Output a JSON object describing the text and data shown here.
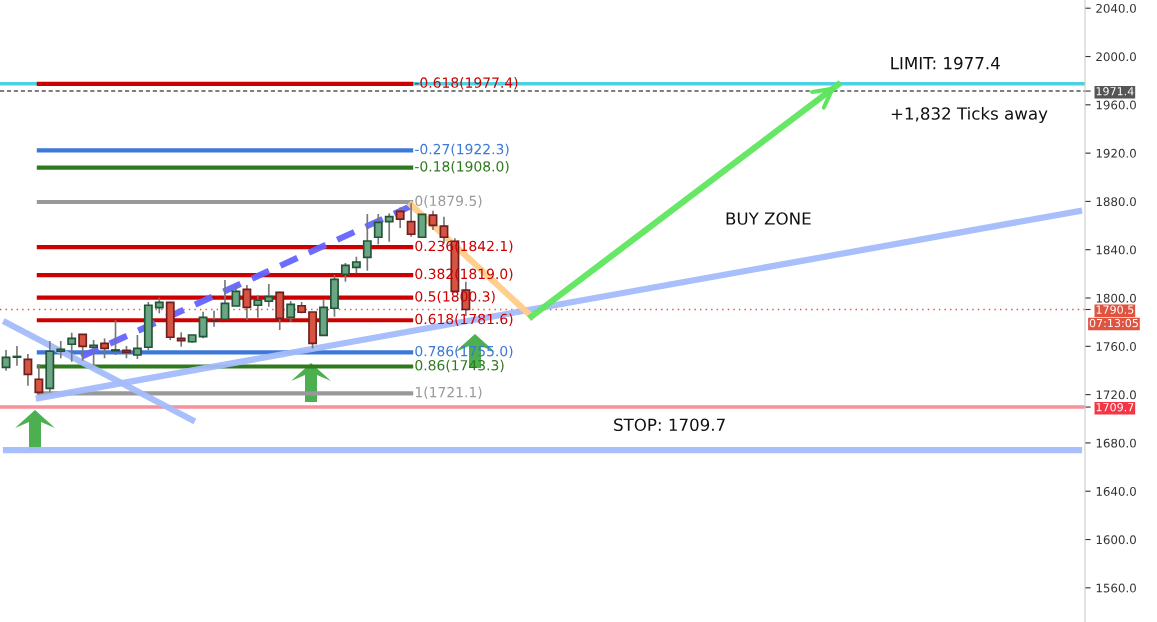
{
  "chart_data": {
    "type": "candlestick",
    "categories": [
      null,
      null,
      null,
      null,
      null,
      null,
      null,
      null,
      null,
      null,
      null,
      null,
      null,
      null,
      null,
      null,
      null,
      null,
      null,
      null,
      null,
      null,
      null,
      null,
      null,
      null,
      null,
      null,
      null,
      null,
      null,
      null,
      null,
      null,
      null,
      null,
      null,
      null,
      null,
      null,
      null,
      null,
      null,
      null,
      null,
      null,
      null,
      null,
      null,
      null,
      null,
      null,
      null,
      null,
      null,
      null,
      null,
      null,
      null,
      null,
      null,
      null,
      null,
      null,
      null,
      null,
      null,
      null,
      null,
      null,
      null,
      null,
      null,
      null,
      null,
      null,
      null,
      null,
      null,
      null,
      null,
      null,
      null,
      null,
      null,
      null,
      null,
      null,
      null,
      null,
      null,
      null,
      null,
      null,
      null,
      null,
      null,
      null,
      null
    ],
    "ohlc": [
      [
        1742.6,
        1756.9,
        1739.8,
        1750.9
      ],
      [
        1751.0,
        1760.3,
        1744.0,
        1751.0
      ],
      [
        1749.2,
        1753.6,
        1727.4,
        1736.8
      ],
      [
        1732.7,
        1745.1,
        1720.5,
        1721.9
      ],
      [
        1725.2,
        1764.4,
        1721.9,
        1755.9
      ],
      [
        1755.9,
        1764.4,
        1750.1,
        1757.5
      ],
      [
        1761.7,
        1771.3,
        1747.2,
        1766.6
      ],
      [
        1769.9,
        1769.9,
        1748.1,
        1760.0
      ],
      [
        1759.2,
        1765.2,
        1744.5,
        1760.9
      ],
      [
        1762.5,
        1766.6,
        1750.1,
        1758.3
      ],
      [
        1756.4,
        1781.8,
        1752.8,
        1756.4
      ],
      [
        1756.7,
        1760.3,
        1750.1,
        1755.0
      ],
      [
        1752.8,
        1769.4,
        1749.5,
        1758.3
      ],
      [
        1759.2,
        1796.7,
        1756.9,
        1794.0
      ],
      [
        1792.0,
        1800.3,
        1787.3,
        1796.4
      ],
      [
        1796.4,
        1796.4,
        1765.2,
        1767.5
      ],
      [
        1766.6,
        1771.6,
        1759.7,
        1764.7
      ],
      [
        1763.8,
        1769.4,
        1763.0,
        1769.4
      ],
      [
        1768.0,
        1788.7,
        1766.6,
        1784.0
      ],
      [
        1781.2,
        1789.5,
        1776.2,
        1780.8
      ],
      [
        1782.4,
        1814.9,
        1782.4,
        1795.6
      ],
      [
        1793.4,
        1810.8,
        1793.4,
        1805.5
      ],
      [
        1807.2,
        1810.8,
        1781.8,
        1792.3
      ],
      [
        1794.0,
        1802.2,
        1783.7,
        1798.3
      ],
      [
        1797.3,
        1811.6,
        1792.8,
        1801.1
      ],
      [
        1804.7,
        1805.2,
        1773.5,
        1783.2
      ],
      [
        1784.0,
        1797.5,
        1780.4,
        1794.8
      ],
      [
        1793.6,
        1796.7,
        1787.3,
        1788.2
      ],
      [
        1788.4,
        1788.4,
        1758.3,
        1762.5
      ],
      [
        1769.1,
        1798.9,
        1769.1,
        1792.3
      ],
      [
        1791.5,
        1819.0,
        1784.5,
        1815.5
      ],
      [
        1819.6,
        1829.0,
        1813.5,
        1827.1
      ],
      [
        1825.4,
        1834.2,
        1820.5,
        1829.8
      ],
      [
        1833.7,
        1869.6,
        1822.6,
        1847.2
      ],
      [
        1850.3,
        1869.6,
        1844.5,
        1862.7
      ],
      [
        1863.2,
        1870.1,
        1846.6,
        1867.4
      ],
      [
        1871.8,
        1875.0,
        1858.0,
        1865.4
      ],
      [
        1863.2,
        1878.4,
        1850.8,
        1852.8
      ],
      [
        1850.3,
        1869.3,
        1850.3,
        1869.3
      ],
      [
        1868.7,
        1872.3,
        1856.3,
        1860.2
      ],
      [
        1859.6,
        1867.3,
        1845.3,
        1850.3
      ],
      [
        1847.0,
        1849.4,
        1805.5,
        1805.5
      ],
      [
        1806.6,
        1813.5,
        1785.1,
        1790.5
      ],
      null,
      null,
      null,
      null,
      null,
      null,
      null,
      null,
      null,
      null,
      null,
      null,
      null,
      null,
      null,
      null,
      null,
      null,
      null,
      null,
      null,
      null,
      null,
      null,
      null,
      null,
      null,
      null,
      null,
      null,
      null,
      null,
      null,
      null,
      null,
      null,
      null,
      null,
      null,
      null,
      null,
      null,
      null,
      null,
      null,
      null,
      null,
      null,
      null,
      null,
      null,
      null,
      null,
      null,
      null,
      null
    ],
    "series": [
      {
        "type": "line",
        "name": "-0.618(1977.4)",
        "color": "#cc0000",
        "values": [
          null,
          null,
          null,
          1977.4,
          null,
          null,
          null,
          null,
          null,
          null,
          null,
          null,
          null,
          null,
          null,
          null,
          null,
          null,
          null,
          null,
          null,
          null,
          null,
          null,
          null,
          null,
          null,
          null,
          null,
          null,
          null,
          null,
          null,
          null,
          null,
          null,
          null,
          1977.4,
          null,
          null,
          null,
          null,
          null,
          null,
          null,
          null,
          null,
          null,
          null,
          null,
          null,
          null,
          null,
          null,
          null,
          null,
          null,
          null,
          null,
          null,
          null,
          null,
          null,
          null,
          null,
          null,
          null,
          null,
          null,
          null,
          null,
          null,
          null,
          null,
          null,
          null,
          null,
          null,
          null,
          null,
          null,
          null,
          null,
          null,
          null,
          null,
          null,
          null,
          null,
          null,
          null,
          null,
          null,
          null,
          null,
          null,
          null,
          null,
          null
        ]
      },
      {
        "type": "line",
        "name": "-0.27(1922.3)",
        "color": "#3c78d8",
        "values": [
          null,
          null,
          null,
          1922.3,
          null,
          null,
          null,
          null,
          null,
          null,
          null,
          null,
          null,
          null,
          null,
          null,
          null,
          null,
          null,
          null,
          null,
          null,
          null,
          null,
          null,
          null,
          null,
          null,
          null,
          null,
          null,
          null,
          null,
          null,
          null,
          null,
          null,
          1922.3,
          null,
          null,
          null,
          null,
          null,
          null,
          null,
          null,
          null,
          null,
          null,
          null,
          null,
          null,
          null,
          null,
          null,
          null,
          null,
          null,
          null,
          null,
          null,
          null,
          null,
          null,
          null,
          null,
          null,
          null,
          null,
          null,
          null,
          null,
          null,
          null,
          null,
          null,
          null,
          null,
          null,
          null,
          null,
          null,
          null,
          null,
          null,
          null,
          null,
          null,
          null,
          null,
          null,
          null,
          null,
          null,
          null,
          null,
          null,
          null,
          null
        ]
      },
      {
        "type": "line",
        "name": "-0.18(1908.0)",
        "color": "#2f7a1f",
        "values": [
          null,
          null,
          null,
          1908.0,
          null,
          null,
          null,
          null,
          null,
          null,
          null,
          null,
          null,
          null,
          null,
          null,
          null,
          null,
          null,
          null,
          null,
          null,
          null,
          null,
          null,
          null,
          null,
          null,
          null,
          null,
          null,
          null,
          null,
          null,
          null,
          null,
          null,
          1908.0,
          null,
          null,
          null,
          null,
          null,
          null,
          null,
          null,
          null,
          null,
          null,
          null,
          null,
          null,
          null,
          null,
          null,
          null,
          null,
          null,
          null,
          null,
          null,
          null,
          null,
          null,
          null,
          null,
          null,
          null,
          null,
          null,
          null,
          null,
          null,
          null,
          null,
          null,
          null,
          null,
          null,
          null,
          null,
          null,
          null,
          null,
          null,
          null,
          null,
          null,
          null,
          null,
          null,
          null,
          null,
          null,
          null,
          null,
          null,
          null,
          null
        ]
      },
      {
        "type": "line",
        "name": "0(1879.5)",
        "color": "#999999",
        "values": [
          null,
          null,
          null,
          1879.5,
          null,
          null,
          null,
          null,
          null,
          null,
          null,
          null,
          null,
          null,
          null,
          null,
          null,
          null,
          null,
          null,
          null,
          null,
          null,
          null,
          null,
          null,
          null,
          null,
          null,
          null,
          null,
          null,
          null,
          null,
          null,
          null,
          null,
          1879.5,
          null,
          null,
          null,
          null,
          null,
          null,
          null,
          null,
          null,
          null,
          null,
          null,
          null,
          null,
          null,
          null,
          null,
          null,
          null,
          null,
          null,
          null,
          null,
          null,
          null,
          null,
          null,
          null,
          null,
          null,
          null,
          null,
          null,
          null,
          null,
          null,
          null,
          null,
          null,
          null,
          null,
          null,
          null,
          null,
          null,
          null,
          null,
          null,
          null,
          null,
          null,
          null,
          null,
          null,
          null,
          null,
          null,
          null,
          null,
          null,
          null
        ]
      },
      {
        "type": "line",
        "name": "0.236(1842.1)",
        "color": "#cc0000",
        "values": [
          null,
          null,
          null,
          1842.1,
          null,
          null,
          null,
          null,
          null,
          null,
          null,
          null,
          null,
          null,
          null,
          null,
          null,
          null,
          null,
          null,
          null,
          null,
          null,
          null,
          null,
          null,
          null,
          null,
          null,
          null,
          null,
          null,
          null,
          null,
          null,
          null,
          null,
          1842.1,
          null,
          null,
          null,
          null,
          null,
          null,
          null,
          null,
          null,
          null,
          null,
          null,
          null,
          null,
          null,
          null,
          null,
          null,
          null,
          null,
          null,
          null,
          null,
          null,
          null,
          null,
          null,
          null,
          null,
          null,
          null,
          null,
          null,
          null,
          null,
          null,
          null,
          null,
          null,
          null,
          null,
          null,
          null,
          null,
          null,
          null,
          null,
          null,
          null,
          null,
          null,
          null,
          null,
          null,
          null,
          null,
          null,
          null,
          null,
          null,
          null
        ]
      },
      {
        "type": "line",
        "name": "0.382(1819.0)",
        "color": "#cc0000",
        "values": [
          null,
          null,
          null,
          1819.0,
          null,
          null,
          null,
          null,
          null,
          null,
          null,
          null,
          null,
          null,
          null,
          null,
          null,
          null,
          null,
          null,
          null,
          null,
          null,
          null,
          null,
          null,
          null,
          null,
          null,
          null,
          null,
          null,
          null,
          null,
          null,
          null,
          null,
          1819.0,
          null,
          null,
          null,
          null,
          null,
          null,
          null,
          null,
          null,
          null,
          null,
          null,
          null,
          null,
          null,
          null,
          null,
          null,
          null,
          null,
          null,
          null,
          null,
          null,
          null,
          null,
          null,
          null,
          null,
          null,
          null,
          null,
          null,
          null,
          null,
          null,
          null,
          null,
          null,
          null,
          null,
          null,
          null,
          null,
          null,
          null,
          null,
          null,
          null,
          null,
          null,
          null,
          null,
          null,
          null,
          null,
          null,
          null,
          null,
          null,
          null
        ]
      },
      {
        "type": "line",
        "name": "0.5(1800.3)",
        "color": "#cc0000",
        "values": [
          null,
          null,
          null,
          1800.3,
          null,
          null,
          null,
          null,
          null,
          null,
          null,
          null,
          null,
          null,
          null,
          null,
          null,
          null,
          null,
          null,
          null,
          null,
          null,
          null,
          null,
          null,
          null,
          null,
          null,
          null,
          null,
          null,
          null,
          null,
          null,
          null,
          null,
          1800.3,
          null,
          null,
          null,
          null,
          null,
          null,
          null,
          null,
          null,
          null,
          null,
          null,
          null,
          null,
          null,
          null,
          null,
          null,
          null,
          null,
          null,
          null,
          null,
          null,
          null,
          null,
          null,
          null,
          null,
          null,
          null,
          null,
          null,
          null,
          null,
          null,
          null,
          null,
          null,
          null,
          null,
          null,
          null,
          null,
          null,
          null,
          null,
          null,
          null,
          null,
          null,
          null,
          null,
          null,
          null,
          null,
          null,
          null,
          null,
          null,
          null
        ]
      },
      {
        "type": "line",
        "name": "0.618(1781.6)",
        "color": "#cc0000",
        "values": [
          null,
          null,
          null,
          1781.6,
          null,
          null,
          null,
          null,
          null,
          null,
          null,
          null,
          null,
          null,
          null,
          null,
          null,
          null,
          null,
          null,
          null,
          null,
          null,
          null,
          null,
          null,
          null,
          null,
          null,
          null,
          null,
          null,
          null,
          null,
          null,
          null,
          null,
          1781.6,
          null,
          null,
          null,
          null,
          null,
          null,
          null,
          null,
          null,
          null,
          null,
          null,
          null,
          null,
          null,
          null,
          null,
          null,
          null,
          null,
          null,
          null,
          null,
          null,
          null,
          null,
          null,
          null,
          null,
          null,
          null,
          null,
          null,
          null,
          null,
          null,
          null,
          null,
          null,
          null,
          null,
          null,
          null,
          null,
          null,
          null,
          null,
          null,
          null,
          null,
          null,
          null,
          null,
          null,
          null,
          null,
          null,
          null,
          null,
          null,
          null
        ]
      },
      {
        "type": "line",
        "name": "0.786(1755.0)",
        "color": "#3c78d8",
        "values": [
          null,
          null,
          null,
          1755.0,
          null,
          null,
          null,
          null,
          null,
          null,
          null,
          null,
          null,
          null,
          null,
          null,
          null,
          null,
          null,
          null,
          null,
          null,
          null,
          null,
          null,
          null,
          null,
          null,
          null,
          null,
          null,
          null,
          null,
          null,
          null,
          null,
          null,
          1755.0,
          null,
          null,
          null,
          null,
          null,
          null,
          null,
          null,
          null,
          null,
          null,
          null,
          null,
          null,
          null,
          null,
          null,
          null,
          null,
          null,
          null,
          null,
          null,
          null,
          null,
          null,
          null,
          null,
          null,
          null,
          null,
          null,
          null,
          null,
          null,
          null,
          null,
          null,
          null,
          null,
          null,
          null,
          null,
          null,
          null,
          null,
          null,
          null,
          null,
          null,
          null,
          null,
          null,
          null,
          null,
          null,
          null,
          null,
          null,
          null,
          null
        ]
      },
      {
        "type": "line",
        "name": "0.86(1743.3)",
        "color": "#2f7a1f",
        "values": [
          null,
          null,
          null,
          1743.3,
          null,
          null,
          null,
          null,
          null,
          null,
          null,
          null,
          null,
          null,
          null,
          null,
          null,
          null,
          null,
          null,
          null,
          null,
          null,
          null,
          null,
          null,
          null,
          null,
          null,
          null,
          null,
          null,
          null,
          null,
          null,
          null,
          null,
          1743.3,
          null,
          null,
          null,
          null,
          null,
          null,
          null,
          null,
          null,
          null,
          null,
          null,
          null,
          null,
          null,
          null,
          null,
          null,
          null,
          null,
          null,
          null,
          null,
          null,
          null,
          null,
          null,
          null,
          null,
          null,
          null,
          null,
          null,
          null,
          null,
          null,
          null,
          null,
          null,
          null,
          null,
          null,
          null,
          null,
          null,
          null,
          null,
          null,
          null,
          null,
          null,
          null,
          null,
          null,
          null,
          null,
          null,
          null,
          null,
          null,
          null
        ]
      },
      {
        "type": "line",
        "name": "1(1721.1)",
        "color": "#999999",
        "values": [
          null,
          null,
          null,
          1721.1,
          null,
          null,
          null,
          null,
          null,
          null,
          null,
          null,
          null,
          null,
          null,
          null,
          null,
          null,
          null,
          null,
          null,
          null,
          null,
          null,
          null,
          null,
          null,
          null,
          null,
          null,
          null,
          null,
          null,
          null,
          null,
          null,
          null,
          1721.1,
          null,
          null,
          null,
          null,
          null,
          null,
          null,
          null,
          null,
          null,
          null,
          null,
          null,
          null,
          null,
          null,
          null,
          null,
          null,
          null,
          null,
          null,
          null,
          null,
          null,
          null,
          null,
          null,
          null,
          null,
          null,
          null,
          null,
          null,
          null,
          null,
          null,
          null,
          null,
          null,
          null,
          null,
          null,
          null,
          null,
          null,
          null,
          null,
          null,
          null,
          null,
          null,
          null,
          null,
          null,
          null,
          null,
          null,
          null,
          null,
          null
        ]
      },
      {
        "type": "line",
        "color": "#a4bcfb",
        "values": [
          null,
          null,
          null,
          1717.2,
          null,
          null,
          null,
          null,
          null,
          null,
          null,
          null,
          null,
          null,
          null,
          null,
          null,
          null,
          null,
          null,
          null,
          null,
          null,
          null,
          null,
          null,
          null,
          null,
          null,
          null,
          null,
          null,
          null,
          null,
          null,
          null,
          null,
          null,
          null,
          null,
          null,
          null,
          null,
          null,
          null,
          null,
          null,
          null,
          null,
          null,
          null,
          null,
          null,
          null,
          null,
          null,
          null,
          null,
          null,
          null,
          null,
          null,
          null,
          null,
          null,
          null,
          null,
          null,
          null,
          null,
          null,
          null,
          null,
          null,
          null,
          null,
          null,
          null,
          null,
          null,
          null,
          null,
          null,
          null,
          null,
          null,
          null,
          null,
          null,
          null,
          null,
          null,
          null,
          null,
          null,
          null,
          null,
          null,
          1872.0
        ]
      },
      {
        "type": "line",
        "color": "#a4bcfb",
        "values": [
          1779.7,
          null,
          null,
          null,
          null,
          null,
          null,
          null,
          null,
          null,
          null,
          null,
          null,
          null,
          null,
          null,
          null,
          1699.0,
          null,
          null,
          null,
          null,
          null,
          null,
          null,
          null,
          null,
          null,
          null,
          null,
          null,
          null,
          null,
          null,
          null,
          null,
          null,
          null,
          null,
          null,
          null,
          null,
          null,
          null,
          null,
          null,
          null,
          null,
          null,
          null,
          null,
          null,
          null,
          null,
          null,
          null,
          null,
          null,
          null,
          null,
          null,
          null,
          null,
          null,
          null,
          null,
          null,
          null,
          null,
          null,
          null,
          null,
          null,
          null,
          null,
          null,
          null,
          null,
          null,
          null,
          null,
          null,
          null,
          null,
          null,
          null,
          null,
          null,
          null,
          null,
          null,
          null,
          null,
          null,
          null,
          null,
          null,
          null,
          null
        ]
      },
      {
        "type": "line",
        "color": "#a4bcfb",
        "values": [
          1674.1,
          null,
          null,
          null,
          null,
          null,
          null,
          null,
          null,
          null,
          null,
          null,
          null,
          null,
          null,
          null,
          null,
          null,
          null,
          null,
          null,
          null,
          null,
          null,
          null,
          null,
          null,
          null,
          null,
          null,
          null,
          null,
          null,
          null,
          null,
          null,
          null,
          null,
          null,
          null,
          null,
          null,
          null,
          null,
          null,
          null,
          null,
          null,
          null,
          null,
          null,
          null,
          null,
          null,
          null,
          null,
          null,
          null,
          null,
          null,
          null,
          null,
          null,
          null,
          null,
          null,
          null,
          null,
          null,
          null,
          null,
          null,
          null,
          null,
          null,
          null,
          null,
          null,
          null,
          null,
          null,
          null,
          null,
          null,
          null,
          null,
          null,
          null,
          null,
          null,
          null,
          null,
          null,
          null,
          null,
          null,
          null,
          null,
          1674.1
        ]
      },
      {
        "type": "line",
        "color": "#6464ff",
        "line_style": "dashed",
        "values": [
          null,
          null,
          null,
          null,
          null,
          null,
          1747.8,
          null,
          null,
          null,
          null,
          null,
          null,
          null,
          null,
          null,
          null,
          null,
          null,
          null,
          null,
          null,
          null,
          null,
          null,
          null,
          null,
          null,
          null,
          null,
          null,
          null,
          null,
          null,
          null,
          null,
          null,
          1876.2,
          null,
          null,
          null,
          null,
          null,
          null,
          null,
          null,
          null,
          null,
          null,
          null,
          null,
          null,
          null,
          null,
          null,
          null,
          null,
          null,
          null,
          null,
          null,
          null,
          null,
          null,
          null,
          null,
          null,
          null,
          null,
          null,
          null,
          null,
          null,
          null,
          null,
          null,
          null,
          null,
          null,
          null,
          null,
          null,
          null,
          null,
          null,
          null,
          null,
          null,
          null,
          null,
          null,
          null,
          null,
          null,
          null,
          null,
          null,
          null,
          null
        ]
      },
      {
        "type": "line",
        "color": "#ffcc88",
        "values": [
          null,
          null,
          null,
          null,
          null,
          null,
          null,
          null,
          null,
          null,
          null,
          null,
          null,
          null,
          null,
          null,
          null,
          null,
          null,
          null,
          null,
          null,
          null,
          null,
          null,
          null,
          null,
          null,
          null,
          null,
          null,
          null,
          null,
          null,
          null,
          null,
          null,
          1877.0,
          null,
          null,
          null,
          null,
          null,
          null,
          null,
          null,
          null,
          null,
          1784.7,
          null,
          null,
          null,
          null,
          null,
          null,
          null,
          null,
          null,
          null,
          null,
          null,
          null,
          null,
          null,
          null,
          null,
          null,
          null,
          null,
          null,
          null,
          null,
          null,
          null,
          null,
          null,
          null,
          null,
          null,
          null,
          null,
          null,
          null,
          null,
          null,
          null,
          null,
          null,
          null,
          null,
          null,
          null,
          null,
          null,
          null,
          null,
          null,
          null,
          null
        ]
      },
      {
        "type": "line",
        "color": "#5ee65e",
        "values": [
          null,
          null,
          null,
          null,
          null,
          null,
          null,
          null,
          null,
          null,
          null,
          null,
          null,
          null,
          null,
          null,
          null,
          null,
          null,
          null,
          null,
          null,
          null,
          null,
          null,
          null,
          null,
          null,
          null,
          null,
          null,
          null,
          null,
          null,
          null,
          null,
          null,
          null,
          null,
          null,
          null,
          null,
          null,
          null,
          null,
          null,
          null,
          null,
          1784.7,
          null,
          null,
          null,
          null,
          null,
          null,
          null,
          null,
          null,
          null,
          null,
          null,
          null,
          null,
          null,
          null,
          null,
          null,
          null,
          null,
          null,
          null,
          null,
          null,
          null,
          null,
          null,
          1976.8,
          null,
          null,
          null,
          null,
          null,
          null,
          null,
          null,
          null,
          null,
          null,
          null,
          null,
          null,
          null,
          null,
          null,
          null,
          null,
          null,
          null,
          null
        ]
      }
    ],
    "ylim": [
      1531.7,
      2046.8
    ],
    "yticks": [
      {
        "value": 1560,
        "label": "1560.0"
      },
      {
        "value": 1600,
        "label": "1600.0"
      },
      {
        "value": 1640,
        "label": "1640.0"
      },
      {
        "value": 1680,
        "label": "1680.0"
      },
      {
        "value": 1720,
        "label": "1720.0"
      },
      {
        "value": 1760,
        "label": "1760.0"
      },
      {
        "value": 1800,
        "label": "1800.0"
      },
      {
        "value": 1840,
        "label": "1840.0"
      },
      {
        "value": 1880,
        "label": "1880.0"
      },
      {
        "value": 1920,
        "label": "1920.0"
      },
      {
        "value": 1960,
        "label": "1960.0"
      },
      {
        "value": 2000,
        "label": "2000.0"
      },
      {
        "value": 2040,
        "label": "2040.0"
      },
      {
        "value": 1971.4,
        "label": "1971.4"
      },
      {
        "value": 1790.5,
        "label": "1790.5"
      },
      {
        "value": 1709.7,
        "label": "1709.7"
      }
    ],
    "ref_lines": [
      {
        "axis": "y",
        "value": 1977.4,
        "label": "LIMIT: 1977.4",
        "color": "#4dd0e1"
      },
      {
        "axis": "y",
        "value": 1971.4,
        "color": "#555555",
        "line_style": "dashed"
      },
      {
        "axis": "y",
        "value": 1790.5,
        "color": "#e0533f",
        "line_style": "dotted"
      },
      {
        "axis": "y",
        "value": 1709.7,
        "label": "STOP: 1709.7",
        "color": "#f23645"
      }
    ],
    "annotations": [
      "BUY ZONE",
      "+1,832 Ticks away",
      "07:13:05"
    ],
    "tick_labels": "y",
    "grid": false,
    "legend": false
  }
}
